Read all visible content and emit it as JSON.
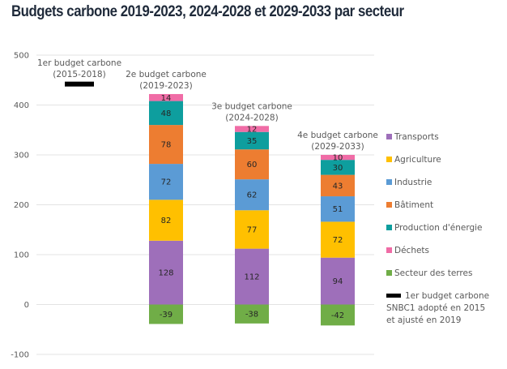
{
  "chart_data": {
    "type": "bar",
    "stacked": true,
    "title": "Budgets carbone 2019-2023, 2024-2028 et 2029-2033 par secteur",
    "xlabel": "",
    "ylabel": "",
    "ylim": [
      -100,
      500
    ],
    "yticks": [
      500,
      400,
      300,
      200,
      100,
      0,
      -100
    ],
    "grid": true,
    "legend_position": "right",
    "categories": [
      {
        "line1": "2e budget carbone",
        "line2": "(2019-2023)"
      },
      {
        "line1": "3e budget carbone",
        "line2": "(2024-2028)"
      },
      {
        "line1": "4e budget carbone",
        "line2": "(2029-2033)"
      }
    ],
    "series": [
      {
        "name": "Transports",
        "color": "#9e6fba",
        "values": [
          128,
          112,
          94
        ]
      },
      {
        "name": "Agriculture",
        "color": "#ffc000",
        "values": [
          82,
          77,
          72
        ]
      },
      {
        "name": "Industrie",
        "color": "#5b9bd5",
        "values": [
          72,
          62,
          51
        ]
      },
      {
        "name": "Bâtiment",
        "color": "#ed7d31",
        "values": [
          78,
          60,
          43
        ]
      },
      {
        "name": "Production d'énergie",
        "color": "#0e9e9e",
        "values": [
          48,
          35,
          30
        ]
      },
      {
        "name": "Déchets",
        "color": "#f06ca6",
        "values": [
          14,
          12,
          10
        ]
      },
      {
        "name": "Secteur des terres",
        "color": "#70ad47",
        "values": [
          -39,
          -38,
          -42
        ]
      }
    ],
    "reference_marker": {
      "label_line1": "1er budget carbone",
      "label_line2": "(2015-2018)",
      "value": 442,
      "color": "#000000",
      "legend_lines": [
        "1er budget carbone",
        "SNBC1 adopté en 2015",
        "et ajusté en 2019"
      ]
    }
  }
}
